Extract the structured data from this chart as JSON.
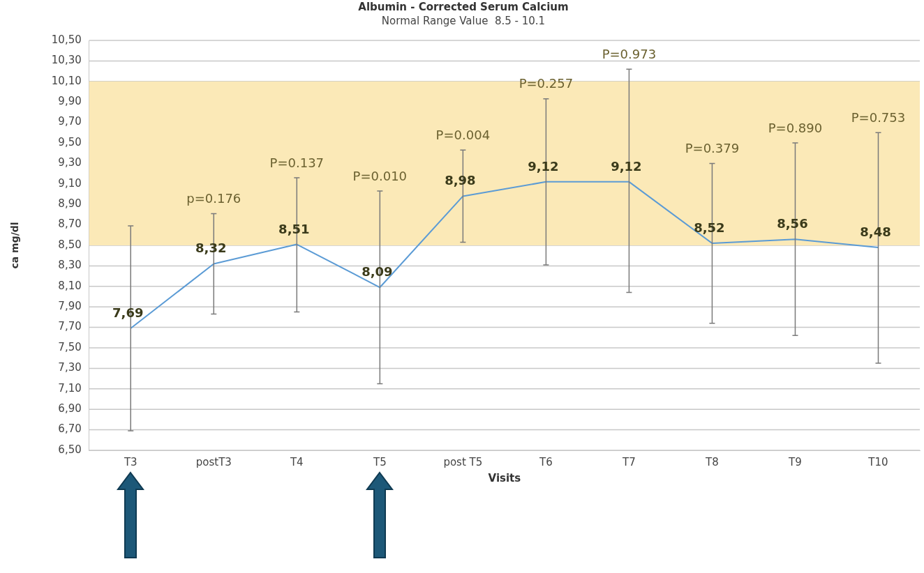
{
  "chart_data": {
    "type": "line",
    "title": "Albumin - Corrected Serum Calcium",
    "subtitle": "Normal Range Value  8.5 - 10.1",
    "xlabel": "Visits",
    "ylabel": "ca mg/dl",
    "categories": [
      "T3",
      "postT3",
      "T4",
      "T5",
      "post T5",
      "T6",
      "T7",
      "T8",
      "T9",
      "T10"
    ],
    "series": [
      {
        "color": "#5b9bd5",
        "values": [
          7.69,
          8.32,
          8.51,
          8.09,
          8.98,
          9.12,
          9.12,
          8.52,
          8.56,
          8.48
        ],
        "value_labels": [
          "7,69",
          "8,32",
          "8,51",
          "8,09",
          "8,98",
          "9,12",
          "9,12",
          "8,52",
          "8,56",
          "8,48"
        ],
        "errors": [
          [
            6.69,
            8.69
          ],
          [
            7.83,
            8.81
          ],
          [
            7.85,
            9.16
          ],
          [
            7.15,
            9.03
          ],
          [
            8.53,
            9.43
          ],
          [
            8.31,
            9.93
          ],
          [
            8.04,
            10.22
          ],
          [
            7.74,
            9.3
          ],
          [
            7.62,
            9.5
          ],
          [
            7.35,
            9.6
          ]
        ]
      }
    ],
    "ylim": [
      6.5,
      10.5
    ],
    "yticks": [
      {
        "value": 6.5,
        "label": "6,50"
      },
      {
        "value": 6.7,
        "label": "6,70"
      },
      {
        "value": 6.9,
        "label": "6,90"
      },
      {
        "value": 7.1,
        "label": "7,10"
      },
      {
        "value": 7.3,
        "label": "7,30"
      },
      {
        "value": 7.5,
        "label": "7,50"
      },
      {
        "value": 7.7,
        "label": "7,70"
      },
      {
        "value": 7.9,
        "label": "7,90"
      },
      {
        "value": 8.1,
        "label": "8,10"
      },
      {
        "value": 8.3,
        "label": "8,30"
      },
      {
        "value": 8.5,
        "label": "8,50"
      },
      {
        "value": 8.7,
        "label": "8,70"
      },
      {
        "value": 8.9,
        "label": "8,90"
      },
      {
        "value": 9.1,
        "label": "9,10"
      },
      {
        "value": 9.3,
        "label": "9,30"
      },
      {
        "value": 9.5,
        "label": "9,50"
      },
      {
        "value": 9.7,
        "label": "9,70"
      },
      {
        "value": 9.9,
        "label": "9,90"
      },
      {
        "value": 10.1,
        "label": "10,10"
      },
      {
        "value": 10.3,
        "label": "10,30"
      },
      {
        "value": 10.5,
        "label": "10,50"
      }
    ],
    "bands": [
      {
        "axis": "y",
        "from": 8.5,
        "to": 10.1,
        "color": "#fbe9b7"
      }
    ],
    "annotations": [
      {
        "text": "p=0.176",
        "x": "postT3",
        "y": 8.81
      },
      {
        "text": "P=0.137",
        "x": "T4",
        "y": 9.16
      },
      {
        "text": "P=0.010",
        "x": "T5",
        "y": 9.03
      },
      {
        "text": "P=0.004",
        "x": "post T5",
        "y": 9.43
      },
      {
        "text": "P=0.257",
        "x": "T6",
        "y": 9.93
      },
      {
        "text": "P=0.973",
        "x": "T7",
        "y": 10.22
      },
      {
        "text": "P=0.379",
        "x": "T8",
        "y": 9.3
      },
      {
        "text": "P=0.890",
        "x": "T9",
        "y": 9.5
      },
      {
        "text": "P=0.753",
        "x": "T10",
        "y": 9.6
      }
    ],
    "grid": "y",
    "legend": false,
    "marker": "none",
    "line_style": "solid"
  }
}
